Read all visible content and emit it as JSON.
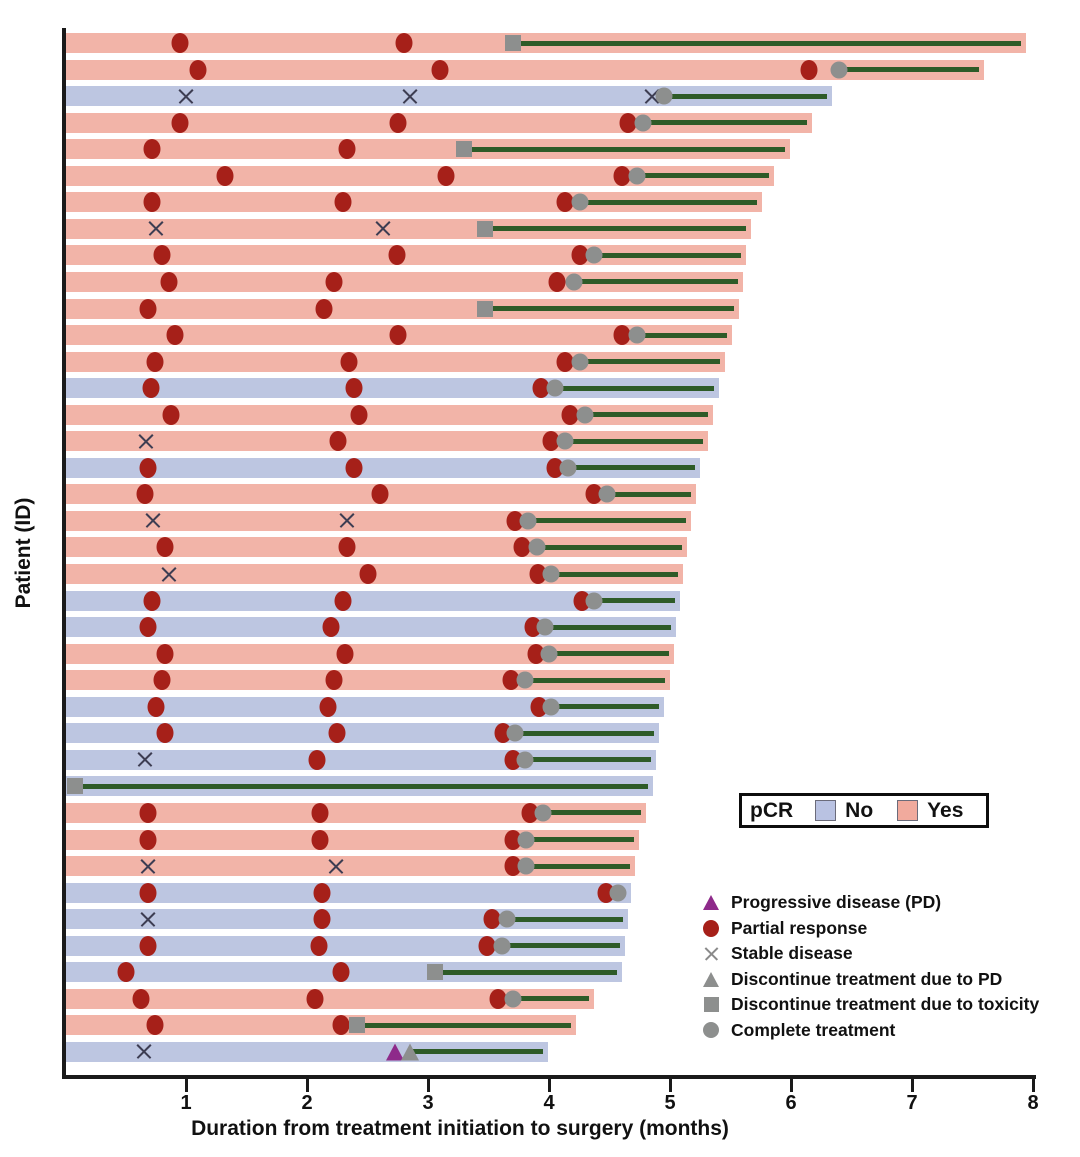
{
  "chart_data": {
    "type": "bar",
    "variant": "swimmer-plot",
    "title": "",
    "xlabel": "Duration from treatment initiation to surgery (months)",
    "ylabel": "Patient (ID)",
    "xlim": [
      0,
      8
    ],
    "xticks": [
      1,
      2,
      3,
      4,
      5,
      6,
      7,
      8
    ],
    "grid": false,
    "colors": {
      "pcr_yes_bar": "#f2b4a8",
      "pcr_no_bar": "#bdc6e1",
      "pcr_yes_swatch": "#f1aa9d",
      "pcr_no_swatch": "#b9c2e2",
      "partial_response": "#a62019",
      "progressive_disease": "#8e2a8a",
      "gray_marker": "#8d8f8e",
      "treatment_line": "#2e5b28",
      "stable_x": "#3d3d52",
      "axis": "#1a1a1a"
    },
    "pcr_legend": {
      "title": "pCR",
      "no_label": "No",
      "yes_label": "Yes"
    },
    "marker_legend": [
      {
        "icon": "progressive-disease-triangle",
        "label": "Progressive disease (PD)"
      },
      {
        "icon": "partial-response-circle",
        "label": "Partial response"
      },
      {
        "icon": "stable-disease-x",
        "label": "Stable disease"
      },
      {
        "icon": "discontinue-pd-triangle",
        "label": "Discontinue treatment due to PD"
      },
      {
        "icon": "discontinue-toxicity-square",
        "label": "Discontinue treatment due to toxicity"
      },
      {
        "icon": "complete-treatment-circle",
        "label": "Complete treatment"
      }
    ],
    "patients": [
      {
        "pcr": "Yes",
        "surgery": 7.9,
        "treatment_end": 3.7,
        "end_marker": "toxicity",
        "events": [
          {
            "t": 0.95,
            "type": "PR"
          },
          {
            "t": 2.8,
            "type": "PR"
          }
        ]
      },
      {
        "pcr": "Yes",
        "surgery": 7.55,
        "treatment_end": 6.4,
        "end_marker": "complete",
        "events": [
          {
            "t": 1.1,
            "type": "PR"
          },
          {
            "t": 3.1,
            "type": "PR"
          },
          {
            "t": 6.15,
            "type": "PR"
          }
        ]
      },
      {
        "pcr": "No",
        "surgery": 6.3,
        "treatment_end": 4.95,
        "end_marker": "complete",
        "events": [
          {
            "t": 1.0,
            "type": "SD"
          },
          {
            "t": 2.85,
            "type": "SD"
          },
          {
            "t": 4.85,
            "type": "SD"
          }
        ]
      },
      {
        "pcr": "Yes",
        "surgery": 6.13,
        "treatment_end": 4.78,
        "end_marker": "complete",
        "events": [
          {
            "t": 0.95,
            "type": "PR"
          },
          {
            "t": 2.75,
            "type": "PR"
          },
          {
            "t": 4.65,
            "type": "PR"
          }
        ]
      },
      {
        "pcr": "Yes",
        "surgery": 5.95,
        "treatment_end": 3.3,
        "end_marker": "toxicity",
        "events": [
          {
            "t": 0.72,
            "type": "PR"
          },
          {
            "t": 2.33,
            "type": "PR"
          }
        ]
      },
      {
        "pcr": "Yes",
        "surgery": 5.82,
        "treatment_end": 4.73,
        "end_marker": "complete",
        "events": [
          {
            "t": 1.32,
            "type": "PR"
          },
          {
            "t": 3.15,
            "type": "PR"
          },
          {
            "t": 4.6,
            "type": "PR"
          }
        ]
      },
      {
        "pcr": "Yes",
        "surgery": 5.72,
        "treatment_end": 4.26,
        "end_marker": "complete",
        "events": [
          {
            "t": 0.72,
            "type": "PR"
          },
          {
            "t": 2.3,
            "type": "PR"
          },
          {
            "t": 4.13,
            "type": "PR"
          }
        ]
      },
      {
        "pcr": "Yes",
        "surgery": 5.63,
        "treatment_end": 3.47,
        "end_marker": "toxicity",
        "events": [
          {
            "t": 0.75,
            "type": "SD"
          },
          {
            "t": 2.63,
            "type": "SD"
          }
        ]
      },
      {
        "pcr": "Yes",
        "surgery": 5.59,
        "treatment_end": 4.37,
        "end_marker": "complete",
        "events": [
          {
            "t": 0.8,
            "type": "PR"
          },
          {
            "t": 2.74,
            "type": "PR"
          },
          {
            "t": 4.26,
            "type": "PR"
          }
        ]
      },
      {
        "pcr": "Yes",
        "surgery": 5.56,
        "treatment_end": 4.21,
        "end_marker": "complete",
        "events": [
          {
            "t": 0.86,
            "type": "PR"
          },
          {
            "t": 2.22,
            "type": "PR"
          },
          {
            "t": 4.07,
            "type": "PR"
          }
        ]
      },
      {
        "pcr": "Yes",
        "surgery": 5.53,
        "treatment_end": 3.47,
        "end_marker": "toxicity",
        "events": [
          {
            "t": 0.69,
            "type": "PR"
          },
          {
            "t": 2.14,
            "type": "PR"
          }
        ]
      },
      {
        "pcr": "Yes",
        "surgery": 5.47,
        "treatment_end": 4.73,
        "end_marker": "complete",
        "events": [
          {
            "t": 0.91,
            "type": "PR"
          },
          {
            "t": 2.75,
            "type": "PR"
          },
          {
            "t": 4.6,
            "type": "PR"
          }
        ]
      },
      {
        "pcr": "Yes",
        "surgery": 5.41,
        "treatment_end": 4.26,
        "end_marker": "complete",
        "events": [
          {
            "t": 0.74,
            "type": "PR"
          },
          {
            "t": 2.35,
            "type": "PR"
          },
          {
            "t": 4.13,
            "type": "PR"
          }
        ]
      },
      {
        "pcr": "No",
        "surgery": 5.36,
        "treatment_end": 4.05,
        "end_marker": "complete",
        "events": [
          {
            "t": 0.71,
            "type": "PR"
          },
          {
            "t": 2.39,
            "type": "PR"
          },
          {
            "t": 3.93,
            "type": "PR"
          }
        ]
      },
      {
        "pcr": "Yes",
        "surgery": 5.31,
        "treatment_end": 4.3,
        "end_marker": "complete",
        "events": [
          {
            "t": 0.88,
            "type": "PR"
          },
          {
            "t": 2.43,
            "type": "PR"
          },
          {
            "t": 4.17,
            "type": "PR"
          }
        ]
      },
      {
        "pcr": "Yes",
        "surgery": 5.27,
        "treatment_end": 4.13,
        "end_marker": "complete",
        "events": [
          {
            "t": 0.67,
            "type": "SD"
          },
          {
            "t": 2.26,
            "type": "PR"
          },
          {
            "t": 4.02,
            "type": "PR"
          }
        ]
      },
      {
        "pcr": "No",
        "surgery": 5.21,
        "treatment_end": 4.16,
        "end_marker": "complete",
        "events": [
          {
            "t": 0.69,
            "type": "PR"
          },
          {
            "t": 2.39,
            "type": "PR"
          },
          {
            "t": 4.05,
            "type": "PR"
          }
        ]
      },
      {
        "pcr": "Yes",
        "surgery": 5.17,
        "treatment_end": 4.48,
        "end_marker": "complete",
        "events": [
          {
            "t": 0.66,
            "type": "PR"
          },
          {
            "t": 2.6,
            "type": "PR"
          },
          {
            "t": 4.37,
            "type": "PR"
          }
        ]
      },
      {
        "pcr": "Yes",
        "surgery": 5.13,
        "treatment_end": 3.83,
        "end_marker": "complete",
        "events": [
          {
            "t": 0.73,
            "type": "SD"
          },
          {
            "t": 2.33,
            "type": "SD"
          },
          {
            "t": 3.72,
            "type": "PR"
          }
        ]
      },
      {
        "pcr": "Yes",
        "surgery": 5.1,
        "treatment_end": 3.9,
        "end_marker": "complete",
        "events": [
          {
            "t": 0.83,
            "type": "PR"
          },
          {
            "t": 2.33,
            "type": "PR"
          },
          {
            "t": 3.78,
            "type": "PR"
          }
        ]
      },
      {
        "pcr": "Yes",
        "surgery": 5.07,
        "treatment_end": 4.02,
        "end_marker": "complete",
        "events": [
          {
            "t": 0.86,
            "type": "SD"
          },
          {
            "t": 2.5,
            "type": "PR"
          },
          {
            "t": 3.91,
            "type": "PR"
          }
        ]
      },
      {
        "pcr": "No",
        "surgery": 5.04,
        "treatment_end": 4.37,
        "end_marker": "complete",
        "events": [
          {
            "t": 0.72,
            "type": "PR"
          },
          {
            "t": 2.3,
            "type": "PR"
          },
          {
            "t": 4.27,
            "type": "PR"
          }
        ]
      },
      {
        "pcr": "No",
        "surgery": 5.01,
        "treatment_end": 3.97,
        "end_marker": "complete",
        "events": [
          {
            "t": 0.69,
            "type": "PR"
          },
          {
            "t": 2.2,
            "type": "PR"
          },
          {
            "t": 3.87,
            "type": "PR"
          }
        ]
      },
      {
        "pcr": "Yes",
        "surgery": 4.99,
        "treatment_end": 4.0,
        "end_marker": "complete",
        "events": [
          {
            "t": 0.83,
            "type": "PR"
          },
          {
            "t": 2.31,
            "type": "PR"
          },
          {
            "t": 3.89,
            "type": "PR"
          }
        ]
      },
      {
        "pcr": "Yes",
        "surgery": 4.96,
        "treatment_end": 3.8,
        "end_marker": "complete",
        "events": [
          {
            "t": 0.8,
            "type": "PR"
          },
          {
            "t": 2.22,
            "type": "PR"
          },
          {
            "t": 3.69,
            "type": "PR"
          }
        ]
      },
      {
        "pcr": "No",
        "surgery": 4.91,
        "treatment_end": 4.02,
        "end_marker": "complete",
        "events": [
          {
            "t": 0.75,
            "type": "PR"
          },
          {
            "t": 2.17,
            "type": "PR"
          },
          {
            "t": 3.92,
            "type": "PR"
          }
        ]
      },
      {
        "pcr": "No",
        "surgery": 4.87,
        "treatment_end": 3.72,
        "end_marker": "complete",
        "events": [
          {
            "t": 0.83,
            "type": "PR"
          },
          {
            "t": 2.25,
            "type": "PR"
          },
          {
            "t": 3.62,
            "type": "PR"
          }
        ]
      },
      {
        "pcr": "No",
        "surgery": 4.84,
        "treatment_end": 3.8,
        "end_marker": "complete",
        "events": [
          {
            "t": 0.66,
            "type": "SD"
          },
          {
            "t": 2.08,
            "type": "PR"
          },
          {
            "t": 3.7,
            "type": "PR"
          }
        ]
      },
      {
        "pcr": "No",
        "surgery": 4.82,
        "treatment_end": 0.08,
        "end_marker": "toxicity",
        "events": []
      },
      {
        "pcr": "Yes",
        "surgery": 4.76,
        "treatment_end": 3.95,
        "end_marker": "complete",
        "events": [
          {
            "t": 0.69,
            "type": "PR"
          },
          {
            "t": 2.11,
            "type": "PR"
          },
          {
            "t": 3.84,
            "type": "PR"
          }
        ]
      },
      {
        "pcr": "Yes",
        "surgery": 4.7,
        "treatment_end": 3.81,
        "end_marker": "complete",
        "events": [
          {
            "t": 0.69,
            "type": "PR"
          },
          {
            "t": 2.11,
            "type": "PR"
          },
          {
            "t": 3.7,
            "type": "PR"
          }
        ]
      },
      {
        "pcr": "Yes",
        "surgery": 4.67,
        "treatment_end": 3.81,
        "end_marker": "complete",
        "events": [
          {
            "t": 0.69,
            "type": "SD"
          },
          {
            "t": 2.24,
            "type": "SD"
          },
          {
            "t": 3.7,
            "type": "PR"
          }
        ]
      },
      {
        "pcr": "No",
        "surgery": 4.64,
        "treatment_end": 4.57,
        "end_marker": "complete",
        "events": [
          {
            "t": 0.69,
            "type": "PR"
          },
          {
            "t": 2.12,
            "type": "PR"
          },
          {
            "t": 4.47,
            "type": "PR"
          }
        ]
      },
      {
        "pcr": "No",
        "surgery": 4.61,
        "treatment_end": 3.65,
        "end_marker": "complete",
        "events": [
          {
            "t": 0.69,
            "type": "SD"
          },
          {
            "t": 2.12,
            "type": "PR"
          },
          {
            "t": 3.53,
            "type": "PR"
          }
        ]
      },
      {
        "pcr": "No",
        "surgery": 4.59,
        "treatment_end": 3.61,
        "end_marker": "complete",
        "events": [
          {
            "t": 0.69,
            "type": "PR"
          },
          {
            "t": 2.1,
            "type": "PR"
          },
          {
            "t": 3.49,
            "type": "PR"
          }
        ]
      },
      {
        "pcr": "No",
        "surgery": 4.56,
        "treatment_end": 3.06,
        "end_marker": "toxicity",
        "events": [
          {
            "t": 0.5,
            "type": "PR"
          },
          {
            "t": 2.28,
            "type": "PR"
          }
        ]
      },
      {
        "pcr": "Yes",
        "surgery": 4.33,
        "treatment_end": 3.7,
        "end_marker": "complete",
        "events": [
          {
            "t": 0.63,
            "type": "PR"
          },
          {
            "t": 2.07,
            "type": "PR"
          },
          {
            "t": 3.58,
            "type": "PR"
          }
        ]
      },
      {
        "pcr": "Yes",
        "surgery": 4.18,
        "treatment_end": 2.41,
        "end_marker": "toxicity",
        "events": [
          {
            "t": 0.74,
            "type": "PR"
          },
          {
            "t": 2.28,
            "type": "PR"
          }
        ]
      },
      {
        "pcr": "No",
        "surgery": 3.95,
        "treatment_end": 2.85,
        "end_marker": "pd",
        "events": [
          {
            "t": 0.65,
            "type": "SD"
          },
          {
            "t": 2.73,
            "type": "PD"
          }
        ]
      }
    ]
  }
}
